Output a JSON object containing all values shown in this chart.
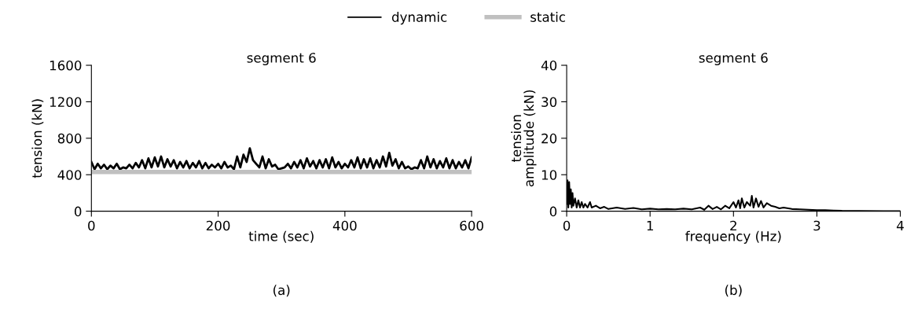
{
  "chart_data": [
    {
      "type": "line",
      "title": "segment 6",
      "xlabel": "time (sec)",
      "ylabel": "tension (kN)",
      "xlim": [
        0,
        600
      ],
      "xticks": [
        0,
        200,
        400,
        600
      ],
      "ylim": [
        0,
        1600
      ],
      "yticks": [
        0,
        400,
        800,
        1200,
        1600
      ],
      "legend": "top",
      "grid": false,
      "annotations": [
        "(a)"
      ],
      "series": [
        {
          "name": "dynamic",
          "color": "#000000",
          "x": [
            0,
            5,
            10,
            15,
            20,
            25,
            30,
            35,
            40,
            45,
            50,
            55,
            60,
            65,
            70,
            75,
            80,
            85,
            90,
            95,
            100,
            105,
            110,
            115,
            120,
            125,
            130,
            135,
            140,
            145,
            150,
            155,
            160,
            165,
            170,
            175,
            180,
            185,
            190,
            195,
            200,
            205,
            210,
            215,
            220,
            225,
            230,
            235,
            240,
            245,
            250,
            255,
            260,
            265,
            270,
            275,
            280,
            285,
            290,
            295,
            300,
            305,
            310,
            315,
            320,
            325,
            330,
            335,
            340,
            345,
            350,
            355,
            360,
            365,
            370,
            375,
            380,
            385,
            390,
            395,
            400,
            405,
            410,
            415,
            420,
            425,
            430,
            435,
            440,
            445,
            450,
            455,
            460,
            465,
            470,
            475,
            480,
            485,
            490,
            495,
            500,
            505,
            510,
            515,
            520,
            525,
            530,
            535,
            540,
            545,
            550,
            555,
            560,
            565,
            570,
            575,
            580,
            585,
            590,
            595,
            600
          ],
          "values": [
            540,
            460,
            520,
            470,
            510,
            460,
            500,
            470,
            520,
            460,
            480,
            470,
            510,
            470,
            530,
            480,
            560,
            470,
            580,
            480,
            590,
            490,
            600,
            480,
            570,
            490,
            560,
            470,
            540,
            480,
            550,
            470,
            530,
            480,
            550,
            470,
            530,
            470,
            510,
            480,
            520,
            470,
            540,
            480,
            500,
            460,
            600,
            480,
            620,
            540,
            690,
            560,
            520,
            480,
            600,
            470,
            570,
            490,
            510,
            460,
            470,
            480,
            520,
            470,
            540,
            480,
            560,
            470,
            580,
            490,
            550,
            470,
            560,
            480,
            570,
            470,
            590,
            480,
            540,
            470,
            520,
            480,
            560,
            480,
            590,
            470,
            570,
            480,
            580,
            470,
            560,
            480,
            600,
            490,
            640,
            500,
            570,
            470,
            540,
            470,
            490,
            460,
            480,
            470,
            560,
            470,
            600,
            480,
            570,
            470,
            550,
            480,
            580,
            470,
            560,
            470,
            540,
            480,
            560,
            470,
            590
          ]
        },
        {
          "name": "static",
          "color": "#c0c0c0",
          "x": [
            0,
            600
          ],
          "values": [
            430,
            430
          ]
        }
      ]
    },
    {
      "type": "line",
      "title": "segment 6",
      "xlabel": "frequency (Hz)",
      "ylabel": "tension\namplitude (kN)",
      "xlim": [
        0,
        4
      ],
      "xticks": [
        0,
        1,
        2,
        3,
        4
      ],
      "ylim": [
        0,
        40
      ],
      "yticks": [
        0,
        10,
        20,
        30,
        40
      ],
      "grid": false,
      "annotations": [
        "(b)"
      ],
      "series": [
        {
          "color": "#000000",
          "x": [
            0,
            0.01,
            0.02,
            0.03,
            0.04,
            0.05,
            0.06,
            0.07,
            0.08,
            0.1,
            0.12,
            0.14,
            0.16,
            0.18,
            0.2,
            0.22,
            0.25,
            0.28,
            0.3,
            0.35,
            0.4,
            0.45,
            0.5,
            0.6,
            0.7,
            0.8,
            0.9,
            1.0,
            1.1,
            1.2,
            1.3,
            1.4,
            1.5,
            1.6,
            1.65,
            1.7,
            1.75,
            1.8,
            1.85,
            1.9,
            1.95,
            2.0,
            2.03,
            2.06,
            2.08,
            2.1,
            2.13,
            2.16,
            2.2,
            2.22,
            2.24,
            2.27,
            2.3,
            2.33,
            2.36,
            2.4,
            2.45,
            2.5,
            2.55,
            2.6,
            2.7,
            2.8,
            2.9,
            3.0,
            3.1,
            3.2,
            3.3,
            3.5,
            3.8,
            4.0
          ],
          "values": [
            2,
            8.5,
            1,
            8,
            2,
            6,
            1,
            5,
            1.5,
            3.5,
            1,
            3,
            1,
            2.5,
            1,
            2,
            1,
            2.5,
            1,
            1.5,
            0.8,
            1.2,
            0.6,
            1,
            0.6,
            0.9,
            0.5,
            0.7,
            0.5,
            0.6,
            0.5,
            0.7,
            0.5,
            1,
            0.4,
            1.5,
            0.6,
            1.2,
            0.5,
            1.5,
            0.8,
            2.5,
            1,
            3,
            0.8,
            3.5,
            1,
            2.5,
            1.5,
            4.2,
            1,
            3.5,
            1.2,
            2.8,
            1,
            2.2,
            1.5,
            1.2,
            0.8,
            1,
            0.6,
            0.5,
            0.4,
            0.3,
            0.3,
            0.2,
            0.1,
            0.05,
            0.02,
            0
          ]
        }
      ]
    }
  ]
}
